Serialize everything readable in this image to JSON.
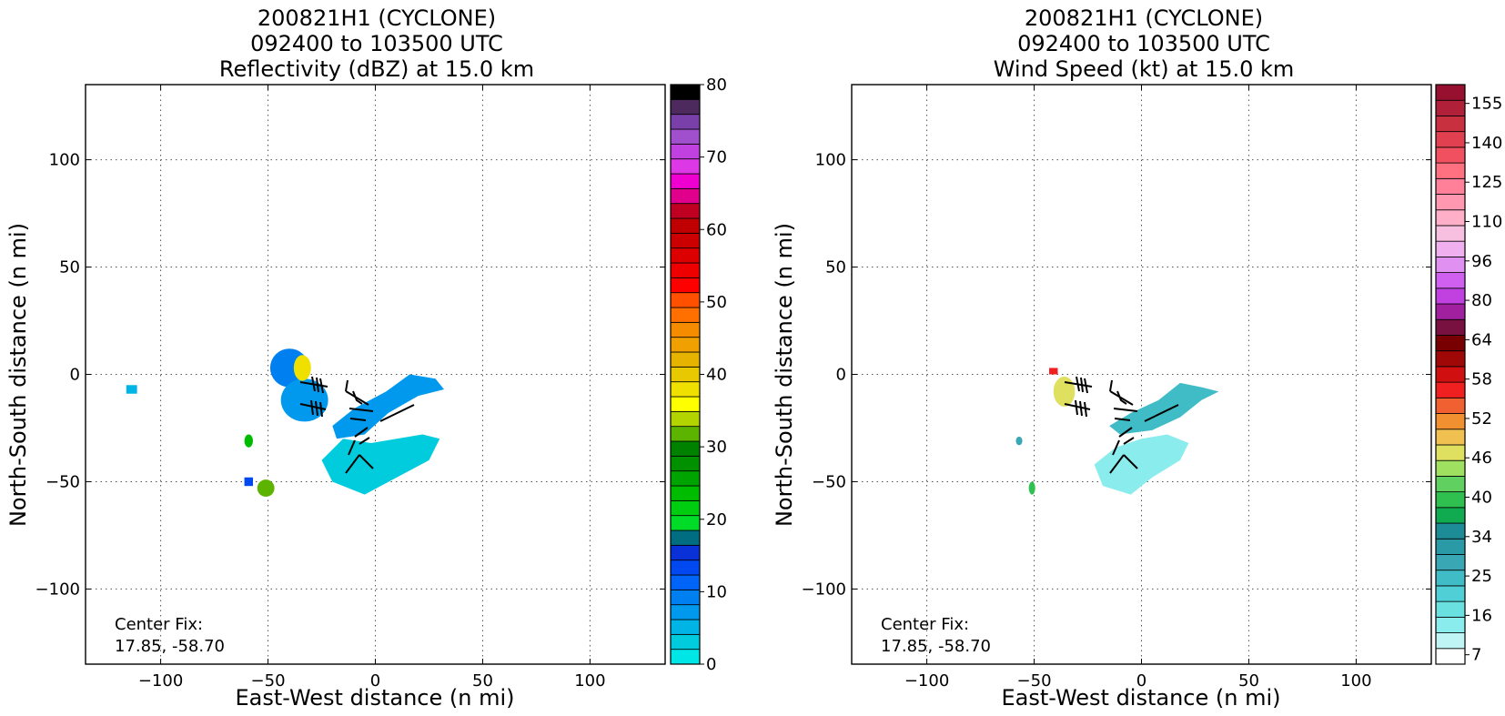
{
  "chart_data": [
    {
      "type": "heatmap",
      "title_lines": [
        "200821H1 (CYCLONE)",
        "092400 to 103500 UTC",
        "Reflectivity (dBZ) at 15.0 km"
      ],
      "xlabel": "East-West distance (n mi)",
      "ylabel": "North-South distance (n mi)",
      "xlim": [
        -135,
        135
      ],
      "ylim": [
        -135,
        135
      ],
      "xticks": [
        -100,
        -50,
        0,
        50,
        100
      ],
      "yticks": [
        -100,
        -50,
        0,
        50,
        100
      ],
      "xtick_labels": [
        "−100",
        "−50",
        "0",
        "50",
        "100"
      ],
      "ytick_labels": [
        "−100",
        "−50",
        "0",
        "50",
        "100"
      ],
      "grid": true,
      "annotation": [
        "Center Fix:",
        "17.85, -58.70"
      ],
      "colorbar": {
        "ticks": [
          "0",
          "10",
          "20",
          "30",
          "40",
          "50",
          "60",
          "70",
          "80"
        ],
        "colors": [
          "#00e5e5",
          "#00ccdd",
          "#00b4e6",
          "#0099ee",
          "#0080f0",
          "#0064f8",
          "#0048f0",
          "#0a30d8",
          "#006e80",
          "#00dc28",
          "#00cc10",
          "#00bc00",
          "#00a400",
          "#009000",
          "#008200",
          "#5cb400",
          "#b4d400",
          "#ffff00",
          "#f0e000",
          "#e8c800",
          "#e6b400",
          "#f0a000",
          "#f58c00",
          "#ff7000",
          "#ff5000",
          "#ff0000",
          "#ee0000",
          "#dd0000",
          "#cc0000",
          "#c00000",
          "#c00020",
          "#e0008c",
          "#f000d0",
          "#dc38e6",
          "#c040e0",
          "#a050cc",
          "#7a40aa",
          "#4c2a5e",
          "#000000"
        ]
      },
      "data_regions": [
        {
          "shape": "rect",
          "x": [
            -116,
            -111
          ],
          "y": [
            -9,
            -5
          ],
          "level": "#00b4e6"
        },
        {
          "shape": "ellipse",
          "cx": -40,
          "cy": 3,
          "rx": 9,
          "ry": 9,
          "level": "#0080f0"
        },
        {
          "shape": "ellipse",
          "cx": -33,
          "cy": -12,
          "rx": 11,
          "ry": 10,
          "level": "#0099ee"
        },
        {
          "shape": "ellipse",
          "cx": -34,
          "cy": 3,
          "rx": 4,
          "ry": 6,
          "level": "#f0e000"
        },
        {
          "shape": "ellipse",
          "cx": -59,
          "cy": -31,
          "rx": 2,
          "ry": 3,
          "level": "#00bc00"
        },
        {
          "shape": "ellipse",
          "cx": -51,
          "cy": -53,
          "rx": 4,
          "ry": 4,
          "level": "#5cb400"
        },
        {
          "shape": "rect",
          "x": [
            -61,
            -57
          ],
          "y": [
            -52,
            -48
          ],
          "level": "#0048f0"
        },
        {
          "shape": "polygon",
          "points": [
            [
              -20,
              -24
            ],
            [
              -10,
              -16
            ],
            [
              5,
              -8
            ],
            [
              16,
              0
            ],
            [
              28,
              -2
            ],
            [
              32,
              -7
            ],
            [
              20,
              -10
            ],
            [
              6,
              -18
            ],
            [
              -5,
              -28
            ],
            [
              -18,
              -30
            ]
          ],
          "level": "#0099ee"
        },
        {
          "shape": "polygon",
          "points": [
            [
              -25,
              -40
            ],
            [
              -15,
              -30
            ],
            [
              -2,
              -32
            ],
            [
              10,
              -30
            ],
            [
              22,
              -28
            ],
            [
              30,
              -30
            ],
            [
              25,
              -40
            ],
            [
              10,
              -48
            ],
            [
              -5,
              -56
            ],
            [
              -20,
              -50
            ]
          ],
          "level": "#00ccdd"
        }
      ]
    },
    {
      "type": "heatmap",
      "title_lines": [
        "200821H1 (CYCLONE)",
        "092400 to 103500 UTC",
        "Wind Speed (kt) at 15.0 km"
      ],
      "xlabel": "East-West distance (n mi)",
      "ylabel": "North-South distance (n mi)",
      "xlim": [
        -135,
        135
      ],
      "ylim": [
        -135,
        135
      ],
      "xticks": [
        -100,
        -50,
        0,
        50,
        100
      ],
      "yticks": [
        -100,
        -50,
        0,
        50,
        100
      ],
      "xtick_labels": [
        "−100",
        "−50",
        "0",
        "50",
        "100"
      ],
      "ytick_labels": [
        "−100",
        "−50",
        "0",
        "50",
        "100"
      ],
      "grid": true,
      "annotation": [
        "Center Fix:",
        "17.85, -58.70"
      ],
      "colorbar": {
        "ticks": [
          "7",
          "16",
          "25",
          "34",
          "40",
          "46",
          "52",
          "58",
          "64",
          "80",
          "96",
          "110",
          "125",
          "140",
          "155"
        ],
        "colors": [
          "#ffffff",
          "#bff5f5",
          "#8aecec",
          "#6ae0e0",
          "#50d0d6",
          "#40bcc6",
          "#3aa8b4",
          "#2a9aa6",
          "#1e8c96",
          "#10aa50",
          "#30c050",
          "#60d060",
          "#a0e060",
          "#e0e060",
          "#f0c050",
          "#f09030",
          "#f06030",
          "#f02020",
          "#d01010",
          "#a00808",
          "#780000",
          "#781040",
          "#a020a0",
          "#c040e0",
          "#d060f0",
          "#e090f0",
          "#f0b0f0",
          "#f8c0e0",
          "#ffb0c8",
          "#ff98b0",
          "#ff8098",
          "#ff7080",
          "#f05060",
          "#e04050",
          "#c83040",
          "#b02038",
          "#981030"
        ]
      },
      "data_regions": [
        {
          "shape": "ellipse",
          "cx": -36,
          "cy": -8,
          "rx": 5,
          "ry": 7,
          "level": "#e0e060"
        },
        {
          "shape": "rect",
          "x": [
            -43,
            -39
          ],
          "y": [
            0,
            3
          ],
          "level": "#f02020"
        },
        {
          "shape": "polygon",
          "points": [
            [
              -15,
              -24
            ],
            [
              -5,
              -18
            ],
            [
              8,
              -12
            ],
            [
              18,
              -4
            ],
            [
              28,
              -6
            ],
            [
              36,
              -8
            ],
            [
              28,
              -12
            ],
            [
              18,
              -20
            ],
            [
              5,
              -26
            ],
            [
              -10,
              -28
            ]
          ],
          "level": "#40bcc6"
        },
        {
          "shape": "polygon",
          "points": [
            [
              -22,
              -42
            ],
            [
              -12,
              -34
            ],
            [
              0,
              -30
            ],
            [
              12,
              -28
            ],
            [
              22,
              -32
            ],
            [
              18,
              -40
            ],
            [
              5,
              -48
            ],
            [
              -5,
              -56
            ],
            [
              -18,
              -52
            ]
          ],
          "level": "#8aecec"
        },
        {
          "shape": "ellipse",
          "cx": -57,
          "cy": -31,
          "rx": 1.5,
          "ry": 2,
          "level": "#3aa8b4"
        },
        {
          "shape": "ellipse",
          "cx": -51,
          "cy": -53,
          "rx": 1.5,
          "ry": 3,
          "level": "#30c050"
        }
      ]
    }
  ]
}
